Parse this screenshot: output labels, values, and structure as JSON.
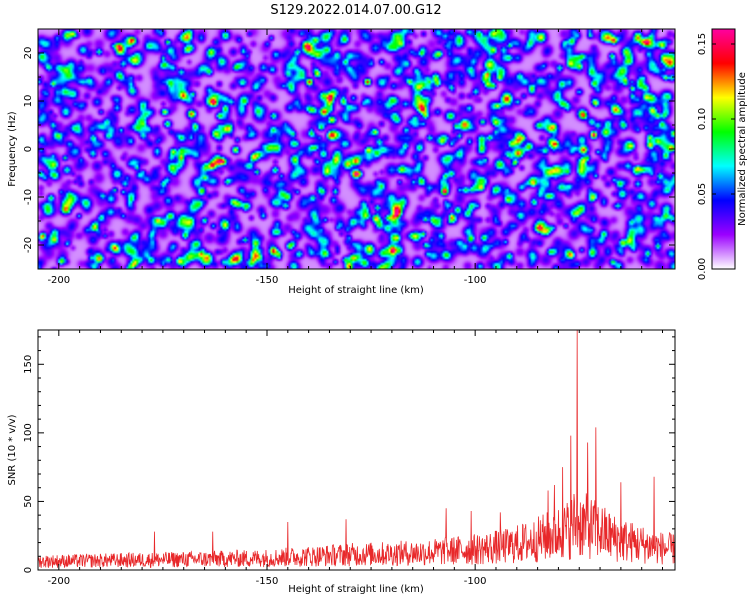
{
  "title": "S129.2022.014.07.00.G12",
  "chart_data": [
    {
      "type": "heatmap",
      "xlabel": "Height of straight line (km)",
      "ylabel": "Frequency (Hz)",
      "xlim": [
        -205,
        -52
      ],
      "ylim": [
        -25,
        25
      ],
      "x_ticks": [
        -200,
        -150,
        -100
      ],
      "y_ticks": [
        -20,
        -10,
        0,
        10,
        20
      ],
      "colorbar": {
        "label": "Normalized spectral amplitude",
        "range": [
          0,
          0.16
        ],
        "ticks": [
          "0.00",
          "0.05",
          "0.10",
          "0.15"
        ],
        "colormap": [
          "#ffffff",
          "#9b00ff",
          "#0000ff",
          "#00ffff",
          "#00ff00",
          "#ffff00",
          "#ff0000",
          "#ff00a0"
        ]
      },
      "background_level": 0.01,
      "peaks": [
        {
          "x": -140,
          "y": 14,
          "value": 0.15
        },
        {
          "x": -126,
          "y": 14,
          "value": 0.15
        },
        {
          "x": -67,
          "y": 23,
          "value": 0.1
        },
        {
          "x": -197,
          "y": 24,
          "value": 0.1
        },
        {
          "x": -96,
          "y": 21,
          "value": 0.09
        },
        {
          "x": -138,
          "y": 16,
          "value": 0.11
        },
        {
          "x": -132,
          "y": 10,
          "value": 0.1
        },
        {
          "x": -148,
          "y": -4,
          "value": 0.09
        },
        {
          "x": -158,
          "y": 0,
          "value": 0.1
        },
        {
          "x": -120,
          "y": -21,
          "value": 0.1
        },
        {
          "x": -74,
          "y": 0,
          "value": 0.09
        },
        {
          "x": -74,
          "y": -2,
          "value": 0.09
        },
        {
          "x": -163,
          "y": 10,
          "value": 0.09
        },
        {
          "x": -112,
          "y": 7,
          "value": 0.08
        },
        {
          "x": -202,
          "y": -10,
          "value": 0.09
        },
        {
          "x": -106,
          "y": -5,
          "value": 0.08
        },
        {
          "x": -86,
          "y": -11,
          "value": 0.08
        },
        {
          "x": -180,
          "y": 3,
          "value": 0.07
        },
        {
          "x": -190,
          "y": -14,
          "value": 0.07
        },
        {
          "x": -170,
          "y": -18,
          "value": 0.08
        },
        {
          "x": -128,
          "y": -5,
          "value": 0.07
        },
        {
          "x": -100,
          "y": 12,
          "value": 0.07
        },
        {
          "x": -80,
          "y": 17,
          "value": 0.08
        },
        {
          "x": -60,
          "y": -4,
          "value": 0.08
        },
        {
          "x": -55,
          "y": 7,
          "value": 0.07
        },
        {
          "x": -145,
          "y": -20,
          "value": 0.07
        },
        {
          "x": -185,
          "y": 18,
          "value": 0.07
        },
        {
          "x": -92,
          "y": -22,
          "value": 0.08
        },
        {
          "x": -117,
          "y": 1,
          "value": 0.07
        },
        {
          "x": -175,
          "y": -7,
          "value": 0.07
        }
      ]
    },
    {
      "type": "line",
      "xlabel": "Height of straight line (km)",
      "ylabel": "SNR (10 * v/v)",
      "xlim": [
        -205,
        -52
      ],
      "ylim": [
        0,
        175
      ],
      "x_ticks": [
        -200,
        -150,
        -100
      ],
      "y_ticks": [
        0,
        50,
        100,
        150
      ],
      "series_color": "#e8282a",
      "envelope": [
        [
          -205,
          10
        ],
        [
          -190,
          11
        ],
        [
          -175,
          12
        ],
        [
          -160,
          13
        ],
        [
          -150,
          14
        ],
        [
          -140,
          16
        ],
        [
          -130,
          18
        ],
        [
          -120,
          19
        ],
        [
          -110,
          21
        ],
        [
          -100,
          24
        ],
        [
          -92,
          28
        ],
        [
          -86,
          34
        ],
        [
          -82,
          40
        ],
        [
          -78,
          46
        ],
        [
          -76,
          55
        ],
        [
          -74,
          52
        ],
        [
          -70,
          45
        ],
        [
          -66,
          36
        ],
        [
          -60,
          30
        ],
        [
          -56,
          26
        ],
        [
          -52,
          24
        ]
      ],
      "spikes": [
        {
          "x": -75.5,
          "y": 175
        },
        {
          "x": -71,
          "y": 104
        },
        {
          "x": -73,
          "y": 93
        },
        {
          "x": -77,
          "y": 98
        },
        {
          "x": -79,
          "y": 75
        },
        {
          "x": -57,
          "y": 68
        },
        {
          "x": -65,
          "y": 64
        },
        {
          "x": -81,
          "y": 62
        },
        {
          "x": -82.5,
          "y": 58
        },
        {
          "x": -107,
          "y": 45
        },
        {
          "x": -101,
          "y": 43
        },
        {
          "x": -94,
          "y": 42
        },
        {
          "x": -131,
          "y": 37
        },
        {
          "x": -145,
          "y": 35
        },
        {
          "x": -177,
          "y": 28
        },
        {
          "x": -163,
          "y": 28
        }
      ]
    }
  ]
}
